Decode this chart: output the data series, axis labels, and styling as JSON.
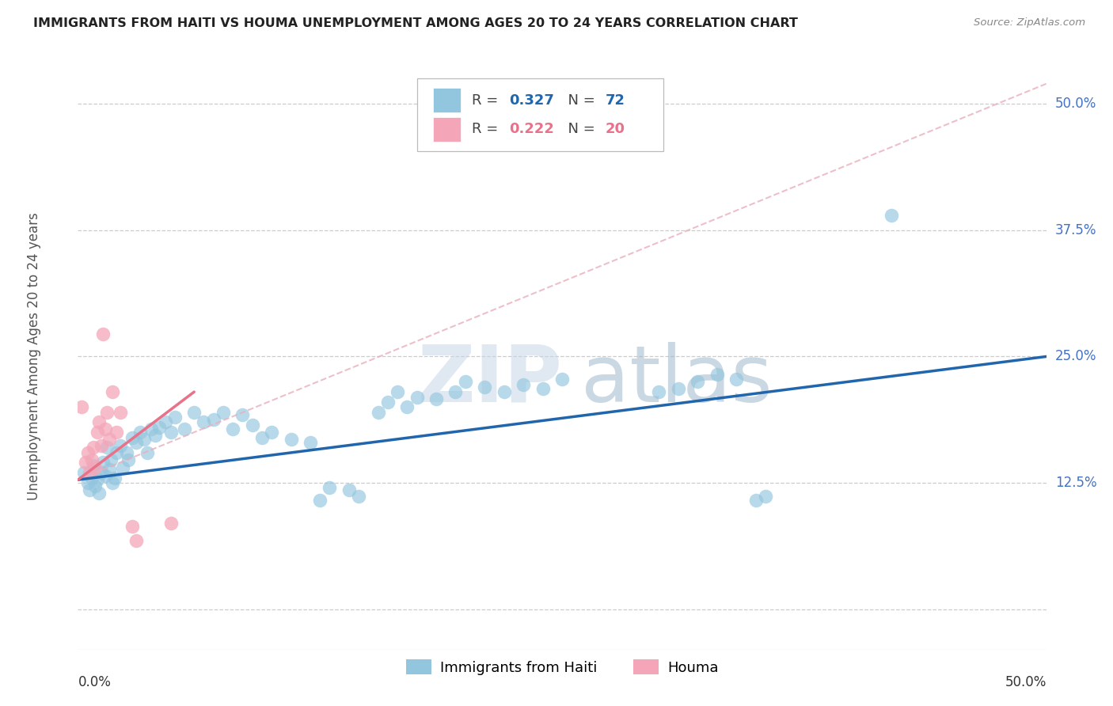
{
  "title": "IMMIGRANTS FROM HAITI VS HOUMA UNEMPLOYMENT AMONG AGES 20 TO 24 YEARS CORRELATION CHART",
  "source": "Source: ZipAtlas.com",
  "ylabel": "Unemployment Among Ages 20 to 24 years",
  "ytick_values": [
    0.0,
    0.125,
    0.25,
    0.375,
    0.5
  ],
  "ytick_labels": [
    "",
    "12.5%",
    "25.0%",
    "37.5%",
    "50.0%"
  ],
  "xlim": [
    0.0,
    0.5
  ],
  "ylim": [
    -0.04,
    0.54
  ],
  "legend_label_blue": "Immigrants from Haiti",
  "legend_label_pink": "Houma",
  "watermark_zip": "ZIP",
  "watermark_atlas": "atlas",
  "blue_color": "#92c5de",
  "pink_color": "#f4a6b8",
  "line_blue_color": "#2166ac",
  "line_pink_color": "#e8728a",
  "line_pink_dash_color": "#e8b0bc",
  "ytick_color": "#4472c4",
  "blue_scatter": [
    [
      0.003,
      0.135
    ],
    [
      0.005,
      0.125
    ],
    [
      0.006,
      0.118
    ],
    [
      0.007,
      0.13
    ],
    [
      0.008,
      0.142
    ],
    [
      0.009,
      0.122
    ],
    [
      0.01,
      0.128
    ],
    [
      0.011,
      0.115
    ],
    [
      0.012,
      0.135
    ],
    [
      0.013,
      0.145
    ],
    [
      0.014,
      0.132
    ],
    [
      0.015,
      0.16
    ],
    [
      0.016,
      0.138
    ],
    [
      0.017,
      0.148
    ],
    [
      0.018,
      0.125
    ],
    [
      0.019,
      0.13
    ],
    [
      0.02,
      0.155
    ],
    [
      0.022,
      0.162
    ],
    [
      0.023,
      0.14
    ],
    [
      0.025,
      0.155
    ],
    [
      0.026,
      0.148
    ],
    [
      0.028,
      0.17
    ],
    [
      0.03,
      0.165
    ],
    [
      0.032,
      0.175
    ],
    [
      0.034,
      0.168
    ],
    [
      0.036,
      0.155
    ],
    [
      0.038,
      0.178
    ],
    [
      0.04,
      0.172
    ],
    [
      0.042,
      0.18
    ],
    [
      0.045,
      0.185
    ],
    [
      0.048,
      0.175
    ],
    [
      0.05,
      0.19
    ],
    [
      0.055,
      0.178
    ],
    [
      0.06,
      0.195
    ],
    [
      0.065,
      0.185
    ],
    [
      0.07,
      0.188
    ],
    [
      0.075,
      0.195
    ],
    [
      0.08,
      0.178
    ],
    [
      0.085,
      0.192
    ],
    [
      0.09,
      0.182
    ],
    [
      0.095,
      0.17
    ],
    [
      0.1,
      0.175
    ],
    [
      0.11,
      0.168
    ],
    [
      0.12,
      0.165
    ],
    [
      0.125,
      0.108
    ],
    [
      0.13,
      0.12
    ],
    [
      0.14,
      0.118
    ],
    [
      0.145,
      0.112
    ],
    [
      0.155,
      0.195
    ],
    [
      0.16,
      0.205
    ],
    [
      0.165,
      0.215
    ],
    [
      0.17,
      0.2
    ],
    [
      0.175,
      0.21
    ],
    [
      0.185,
      0.208
    ],
    [
      0.195,
      0.215
    ],
    [
      0.2,
      0.225
    ],
    [
      0.21,
      0.22
    ],
    [
      0.22,
      0.215
    ],
    [
      0.23,
      0.222
    ],
    [
      0.24,
      0.218
    ],
    [
      0.25,
      0.228
    ],
    [
      0.255,
      0.485
    ],
    [
      0.3,
      0.215
    ],
    [
      0.31,
      0.218
    ],
    [
      0.32,
      0.225
    ],
    [
      0.33,
      0.232
    ],
    [
      0.34,
      0.228
    ],
    [
      0.35,
      0.108
    ],
    [
      0.355,
      0.112
    ],
    [
      0.42,
      0.39
    ]
  ],
  "pink_scatter": [
    [
      0.002,
      0.2
    ],
    [
      0.004,
      0.145
    ],
    [
      0.005,
      0.155
    ],
    [
      0.006,
      0.135
    ],
    [
      0.007,
      0.148
    ],
    [
      0.008,
      0.16
    ],
    [
      0.009,
      0.14
    ],
    [
      0.01,
      0.175
    ],
    [
      0.011,
      0.185
    ],
    [
      0.012,
      0.162
    ],
    [
      0.013,
      0.272
    ],
    [
      0.014,
      0.178
    ],
    [
      0.015,
      0.195
    ],
    [
      0.016,
      0.168
    ],
    [
      0.018,
      0.215
    ],
    [
      0.02,
      0.175
    ],
    [
      0.022,
      0.195
    ],
    [
      0.028,
      0.082
    ],
    [
      0.03,
      0.068
    ],
    [
      0.048,
      0.085
    ]
  ],
  "blue_line": [
    0.0,
    0.5,
    0.128,
    0.25
  ],
  "pink_line_solid": [
    0.0,
    0.06,
    0.128,
    0.215
  ],
  "pink_line_dash": [
    0.0,
    0.5,
    0.128,
    0.52
  ]
}
